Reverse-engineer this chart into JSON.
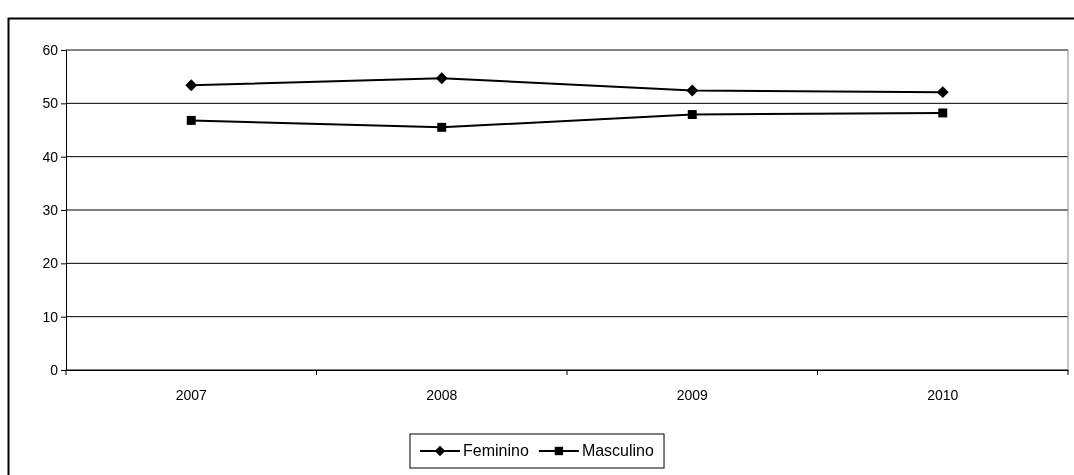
{
  "chart_data": {
    "type": "line",
    "categories": [
      "2007",
      "2008",
      "2009",
      "2010"
    ],
    "series": [
      {
        "name": "Feminino",
        "color": "#000000",
        "marker": "diamond",
        "values": [
          53.4,
          54.7,
          52.4,
          52.1
        ]
      },
      {
        "name": "Masculino",
        "color": "#000000",
        "marker": "square",
        "values": [
          46.8,
          45.5,
          47.9,
          48.2
        ]
      }
    ],
    "ylim": [
      0,
      60
    ],
    "yticks": [
      0,
      10,
      20,
      30,
      40,
      50,
      60
    ],
    "grid": "y",
    "legend": "bottom",
    "line_style": "solid"
  }
}
